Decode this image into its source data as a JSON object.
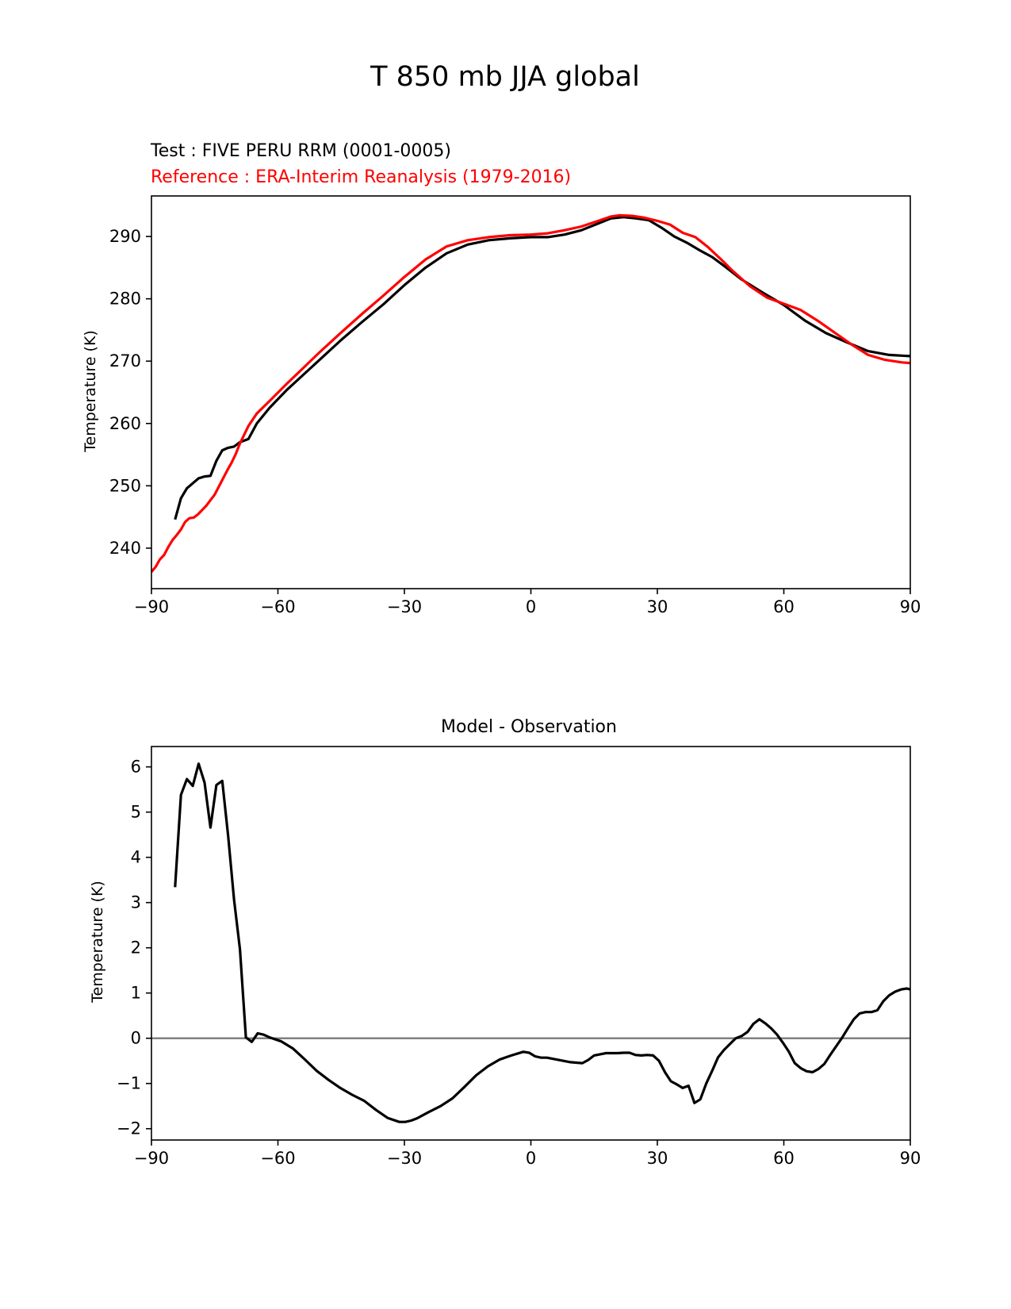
{
  "figure": {
    "title": "T 850 mb JJA global"
  },
  "chart_data": [
    {
      "type": "line",
      "test_label": "Test : FIVE PERU RRM (0001-0005)",
      "reference_label": "Reference : ERA-Interim Reanalysis (1979-2016)",
      "xlabel": "",
      "ylabel": "Temperature (K)",
      "xlim": [
        -90,
        90
      ],
      "ylim": [
        233.5,
        296.5
      ],
      "xticks": [
        -90,
        -60,
        -30,
        0,
        30,
        60,
        90
      ],
      "xtick_labels": [
        "−90",
        "−60",
        "−30",
        "0",
        "30",
        "60",
        "90"
      ],
      "yticks": [
        240,
        250,
        260,
        270,
        280,
        290
      ],
      "ytick_labels": [
        "240",
        "250",
        "260",
        "270",
        "280",
        "290"
      ],
      "colors": {
        "test": "#000000",
        "reference": "#ff0000"
      },
      "series": [
        {
          "name": "Test",
          "color": "#000000",
          "x": [
            -84.4,
            -83.0,
            -81.6,
            -80.2,
            -78.8,
            -77.4,
            -76.0,
            -74.6,
            -73.2,
            -71.8,
            -70.4,
            -69.0,
            -67.0,
            -65.0,
            -62.0,
            -58.0,
            -54.0,
            -50.0,
            -45.0,
            -40.0,
            -35.0,
            -30.0,
            -25.0,
            -20.0,
            -15.0,
            -10.0,
            -5.0,
            0.0,
            4.0,
            8.0,
            12.0,
            16.0,
            19.0,
            22.0,
            25.0,
            28.0,
            31.0,
            34.0,
            37.0,
            40.0,
            43.0,
            46.0,
            50.0,
            55.0,
            60.0,
            65.0,
            70.0,
            75.0,
            80.0,
            85.0,
            90.0
          ],
          "y": [
            244.6,
            248.0,
            249.6,
            250.4,
            251.2,
            251.5,
            251.6,
            254.0,
            255.7,
            256.1,
            256.3,
            257.0,
            257.5,
            260.0,
            262.5,
            265.3,
            267.8,
            270.3,
            273.4,
            276.3,
            279.1,
            282.2,
            285.0,
            287.3,
            288.7,
            289.4,
            289.7,
            289.9,
            289.9,
            290.3,
            291.0,
            292.1,
            292.9,
            293.1,
            292.9,
            292.6,
            291.4,
            290.0,
            289.0,
            287.8,
            286.7,
            285.2,
            283.1,
            281.0,
            279.0,
            276.5,
            274.5,
            273.0,
            271.6,
            271.0,
            270.8
          ]
        },
        {
          "name": "Reference",
          "color": "#ff0000",
          "x": [
            -90.0,
            -89.0,
            -88.0,
            -87.0,
            -86.0,
            -85.0,
            -84.0,
            -83.0,
            -82.0,
            -81.0,
            -80.0,
            -79.0,
            -78.0,
            -77.0,
            -76.0,
            -75.0,
            -74.0,
            -73.0,
            -72.0,
            -71.0,
            -70.0,
            -69.0,
            -67.0,
            -65.0,
            -62.0,
            -58.0,
            -54.0,
            -50.0,
            -45.0,
            -40.0,
            -35.0,
            -30.0,
            -25.0,
            -20.0,
            -15.0,
            -10.0,
            -5.0,
            0.0,
            4.0,
            8.0,
            12.0,
            16.0,
            19.0,
            21.0,
            24.0,
            27.0,
            30.0,
            33.0,
            36.0,
            39.0,
            42.0,
            45.0,
            48.0,
            52.0,
            56.0,
            60.0,
            64.0,
            68.0,
            72.0,
            76.0,
            80.0,
            84.0,
            88.0,
            90.0
          ],
          "y": [
            236.2,
            237.0,
            238.2,
            238.9,
            240.2,
            241.3,
            242.1,
            243.0,
            244.2,
            244.8,
            244.9,
            245.4,
            246.1,
            246.8,
            247.7,
            248.6,
            249.9,
            251.2,
            252.5,
            253.7,
            255.1,
            256.8,
            259.6,
            261.6,
            263.6,
            266.3,
            268.9,
            271.5,
            274.6,
            277.6,
            280.5,
            283.5,
            286.3,
            288.4,
            289.4,
            289.9,
            290.2,
            290.3,
            290.5,
            291.0,
            291.6,
            292.5,
            293.2,
            293.4,
            293.3,
            293.0,
            292.5,
            291.9,
            290.6,
            289.9,
            288.3,
            286.4,
            284.4,
            282.0,
            280.2,
            279.2,
            278.2,
            276.5,
            274.6,
            272.7,
            271.0,
            270.2,
            269.8,
            269.7
          ]
        }
      ]
    },
    {
      "type": "line",
      "title": "Model - Observation",
      "xlabel": "",
      "ylabel": "Temperature (K)",
      "xlim": [
        -90,
        90
      ],
      "ylim": [
        -2.25,
        6.45
      ],
      "xticks": [
        -90,
        -60,
        -30,
        0,
        30,
        60,
        90
      ],
      "xtick_labels": [
        "−90",
        "−60",
        "−30",
        "0",
        "30",
        "60",
        "90"
      ],
      "yticks": [
        -2,
        -1,
        0,
        1,
        2,
        3,
        4,
        5,
        6
      ],
      "ytick_labels": [
        "−2",
        "−1",
        "0",
        "1",
        "2",
        "3",
        "4",
        "5",
        "6"
      ],
      "zero_line_color": "#808080",
      "series": [
        {
          "name": "Model - Observation",
          "color": "#000000",
          "x": [
            -84.4,
            -83.0,
            -81.6,
            -80.2,
            -78.8,
            -77.4,
            -76.0,
            -74.6,
            -73.2,
            -71.8,
            -70.4,
            -69.0,
            -67.6,
            -66.2,
            -64.8,
            -63.4,
            -62.0,
            -59.2,
            -56.4,
            -53.6,
            -50.8,
            -48.0,
            -45.2,
            -42.4,
            -39.6,
            -36.8,
            -34.0,
            -31.2,
            -29.8,
            -28.4,
            -27.0,
            -24.2,
            -21.4,
            -18.6,
            -15.8,
            -13.0,
            -10.2,
            -7.4,
            -4.6,
            -1.8,
            -0.4,
            1.0,
            2.4,
            3.8,
            6.6,
            9.4,
            12.2,
            13.6,
            15.0,
            17.8,
            20.6,
            22.0,
            23.4,
            24.8,
            26.2,
            27.6,
            29.0,
            30.4,
            31.8,
            33.2,
            34.6,
            36.0,
            37.4,
            38.8,
            40.2,
            41.6,
            43.0,
            44.4,
            45.8,
            47.2,
            48.6,
            50.0,
            51.4,
            52.8,
            54.2,
            55.6,
            57.0,
            58.4,
            59.8,
            61.2,
            62.6,
            64.0,
            65.4,
            66.8,
            68.2,
            69.6,
            71.0,
            72.4,
            73.8,
            75.2,
            76.6,
            78.0,
            79.4,
            80.8,
            82.2,
            83.6,
            85.0,
            86.4,
            87.8,
            89.2,
            90.0
          ],
          "y": [
            3.34,
            5.38,
            5.73,
            5.58,
            6.07,
            5.65,
            4.66,
            5.6,
            5.69,
            4.46,
            3.06,
            1.97,
            0.02,
            -0.08,
            0.11,
            0.08,
            0.02,
            -0.07,
            -0.23,
            -0.47,
            -0.72,
            -0.92,
            -1.1,
            -1.25,
            -1.38,
            -1.58,
            -1.76,
            -1.85,
            -1.85,
            -1.82,
            -1.77,
            -1.63,
            -1.5,
            -1.33,
            -1.08,
            -0.82,
            -0.62,
            -0.47,
            -0.38,
            -0.3,
            -0.32,
            -0.4,
            -0.43,
            -0.43,
            -0.48,
            -0.53,
            -0.55,
            -0.48,
            -0.38,
            -0.33,
            -0.33,
            -0.32,
            -0.32,
            -0.37,
            -0.38,
            -0.37,
            -0.38,
            -0.5,
            -0.75,
            -0.95,
            -1.02,
            -1.1,
            -1.05,
            -1.43,
            -1.35,
            -1.0,
            -0.72,
            -0.42,
            -0.26,
            -0.13,
            0.0,
            0.05,
            0.14,
            0.32,
            0.42,
            0.33,
            0.22,
            0.08,
            -0.1,
            -0.3,
            -0.55,
            -0.66,
            -0.73,
            -0.75,
            -0.68,
            -0.57,
            -0.37,
            -0.18,
            0.01,
            0.22,
            0.42,
            0.55,
            0.58,
            0.58,
            0.62,
            0.82,
            0.95,
            1.03,
            1.08,
            1.1,
            1.08
          ]
        }
      ]
    }
  ]
}
